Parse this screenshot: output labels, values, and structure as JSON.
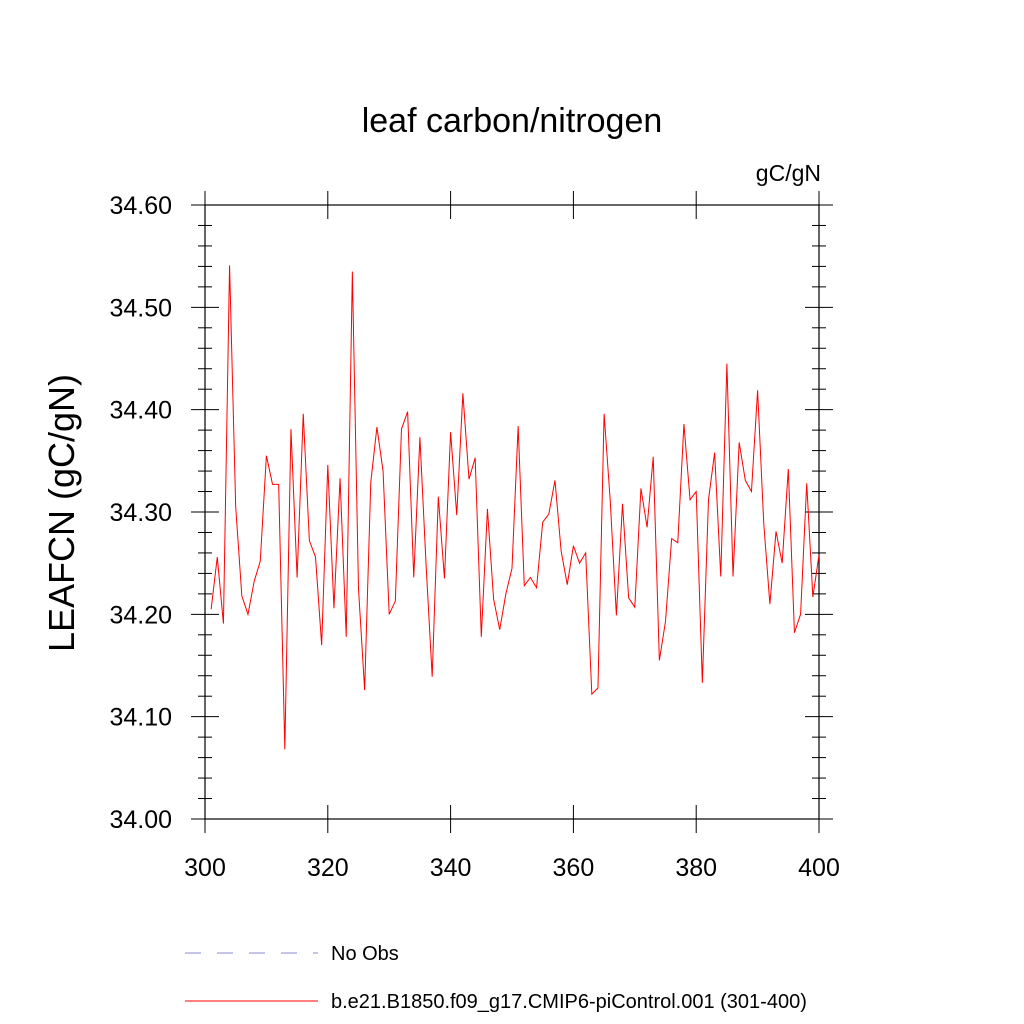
{
  "chart_data": {
    "type": "line",
    "title": "leaf carbon/nitrogen",
    "units": "gC/gN",
    "xlabel": "",
    "ylabel": "LEAFCN  (gC/gN)",
    "xlim": [
      300,
      400
    ],
    "ylim": [
      34.0,
      34.6
    ],
    "xticks": [
      300,
      320,
      340,
      360,
      380,
      400
    ],
    "xtick_labels": [
      "300",
      "320",
      "340",
      "360",
      "380",
      "400"
    ],
    "yticks": [
      34.0,
      34.1,
      34.2,
      34.3,
      34.4,
      34.5,
      34.6
    ],
    "ytick_labels": [
      "34.00",
      "34.10",
      "34.20",
      "34.30",
      "34.40",
      "34.50",
      "34.60"
    ],
    "grid": false,
    "legend": [
      {
        "label": "No Obs",
        "style": "dashed",
        "color": "#8a8ad8"
      },
      {
        "label": "b.e21.B1850.f09_g17.CMIP6-piControl.001 (301-400)",
        "style": "solid",
        "color": "#ff0000"
      }
    ],
    "series": [
      {
        "name": "b.e21.B1850.f09_g17.CMIP6-piControl.001 (301-400)",
        "color": "#ff0000",
        "x": [
          301,
          302,
          303,
          304,
          305,
          306,
          307,
          308,
          309,
          310,
          311,
          312,
          313,
          314,
          315,
          316,
          317,
          318,
          319,
          320,
          321,
          322,
          323,
          324,
          325,
          326,
          327,
          328,
          329,
          330,
          331,
          332,
          333,
          334,
          335,
          336,
          337,
          338,
          339,
          340,
          341,
          342,
          343,
          344,
          345,
          346,
          347,
          348,
          349,
          350,
          351,
          352,
          353,
          354,
          355,
          356,
          357,
          358,
          359,
          360,
          361,
          362,
          363,
          364,
          365,
          366,
          367,
          368,
          369,
          370,
          371,
          372,
          373,
          374,
          375,
          376,
          377,
          378,
          379,
          380,
          381,
          382,
          383,
          384,
          385,
          386,
          387,
          388,
          389,
          390,
          391,
          392,
          393,
          394,
          395,
          396,
          397,
          398,
          399,
          400
        ],
        "values": [
          34.205,
          34.256,
          34.191,
          34.541,
          34.305,
          34.218,
          34.2,
          34.232,
          34.252,
          34.355,
          34.327,
          34.327,
          34.068,
          34.381,
          34.236,
          34.396,
          34.272,
          34.256,
          34.17,
          34.346,
          34.206,
          34.333,
          34.178,
          34.535,
          34.225,
          34.126,
          34.329,
          34.383,
          34.34,
          34.2,
          34.213,
          34.381,
          34.398,
          34.236,
          34.373,
          34.249,
          34.139,
          34.315,
          34.235,
          34.378,
          34.297,
          34.416,
          34.332,
          34.353,
          34.178,
          34.303,
          34.215,
          34.185,
          34.22,
          34.245,
          34.384,
          34.228,
          34.236,
          34.226,
          34.29,
          34.298,
          34.331,
          34.262,
          34.229,
          34.267,
          34.25,
          34.26,
          34.122,
          34.128,
          34.396,
          34.311,
          34.199,
          34.308,
          34.216,
          34.207,
          34.323,
          34.285,
          34.354,
          34.155,
          34.193,
          34.274,
          34.27,
          34.386,
          34.312,
          34.32,
          34.133,
          34.312,
          34.358,
          34.237,
          34.445,
          34.237,
          34.368,
          34.331,
          34.32,
          34.419,
          34.289,
          34.21,
          34.281,
          34.25,
          34.342,
          34.182,
          34.2,
          34.328,
          34.217,
          34.258
        ]
      }
    ]
  }
}
